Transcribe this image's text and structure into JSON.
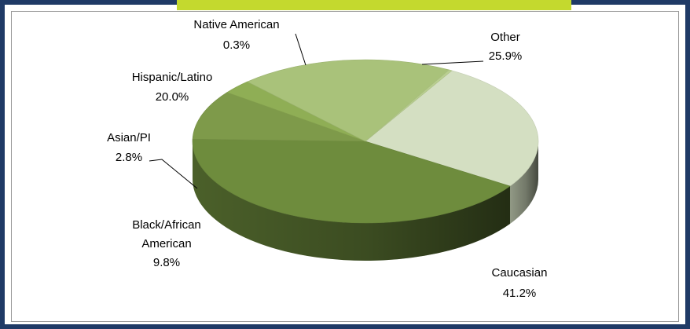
{
  "colors": {
    "frame": "#1f3a66",
    "accent": "#c4d92e"
  },
  "chart_data": {
    "type": "pie",
    "style": "3d",
    "slices": [
      {
        "label": "Other",
        "value": 25.9,
        "display": "25.9%",
        "color": "#d4dfc2"
      },
      {
        "label": "Caucasian",
        "value": 41.2,
        "display": "41.2%",
        "color": "#6e8c3d"
      },
      {
        "label": "Black/African American",
        "label_lines": [
          "Black/African",
          "American"
        ],
        "value": 9.8,
        "display": "9.8%",
        "color": "#7e9a4a"
      },
      {
        "label": "Asian/PI",
        "value": 2.8,
        "display": "2.8%",
        "color": "#8fae55"
      },
      {
        "label": "Hispanic/Latino",
        "value": 20.0,
        "display": "20.0%",
        "color": "#a9c27a"
      },
      {
        "label": "Native American",
        "value": 0.3,
        "display": "0.3%",
        "color": "#b9cf8f"
      }
    ]
  }
}
